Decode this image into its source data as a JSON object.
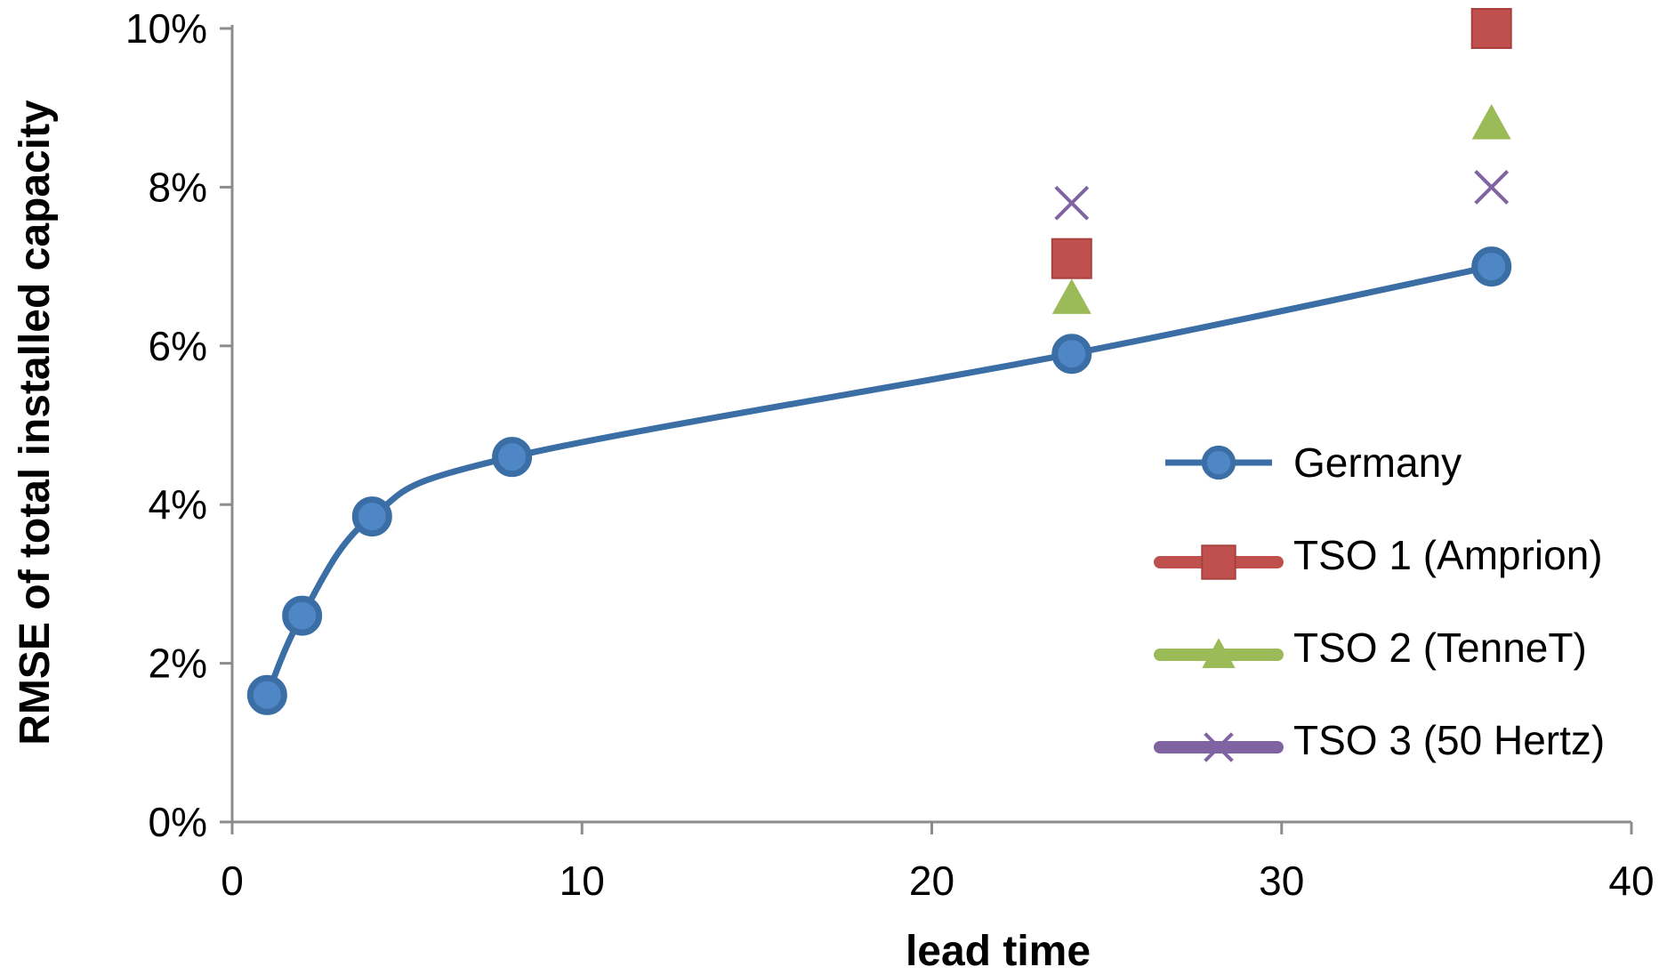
{
  "chart_data": {
    "type": "scatter",
    "title": "",
    "xlabel": "lead time",
    "ylabel": "RMSE of total installed capacity",
    "xlim": [
      0,
      40
    ],
    "ylim": [
      0,
      10
    ],
    "x_ticks": [
      0,
      10,
      20,
      30,
      40
    ],
    "y_ticks": [
      0,
      2,
      4,
      6,
      8,
      10
    ],
    "y_tick_labels": [
      "0%",
      "2%",
      "4%",
      "6%",
      "8%",
      "10%"
    ],
    "x_tick_labels": [
      "0",
      "10",
      "20",
      "30",
      "40"
    ],
    "grid": false,
    "legend_position": "right",
    "series": [
      {
        "name": "Germany",
        "marker": "circle",
        "line": true,
        "smooth": true,
        "color": "#3A6EA5",
        "fill": "#4F86C6",
        "points": [
          {
            "x": 1,
            "y": 1.6
          },
          {
            "x": 2,
            "y": 2.6
          },
          {
            "x": 4,
            "y": 3.85
          },
          {
            "x": 8,
            "y": 4.6
          },
          {
            "x": 24,
            "y": 5.9
          },
          {
            "x": 36,
            "y": 7.0
          }
        ]
      },
      {
        "name": "TSO 1 (Amprion)",
        "marker": "square",
        "line": false,
        "color": "#C0504D",
        "points": [
          {
            "x": 24,
            "y": 7.1
          },
          {
            "x": 36,
            "y": 10.0
          }
        ]
      },
      {
        "name": "TSO 2 (TenneT)",
        "marker": "triangle",
        "line": false,
        "color": "#9BBB59",
        "points": [
          {
            "x": 24,
            "y": 6.6
          },
          {
            "x": 36,
            "y": 8.8
          }
        ]
      },
      {
        "name": "TSO 3 (50 Hertz)",
        "marker": "cross",
        "line": false,
        "color": "#8064A2",
        "points": [
          {
            "x": 24,
            "y": 7.8
          },
          {
            "x": 36,
            "y": 8.0
          }
        ]
      }
    ]
  }
}
